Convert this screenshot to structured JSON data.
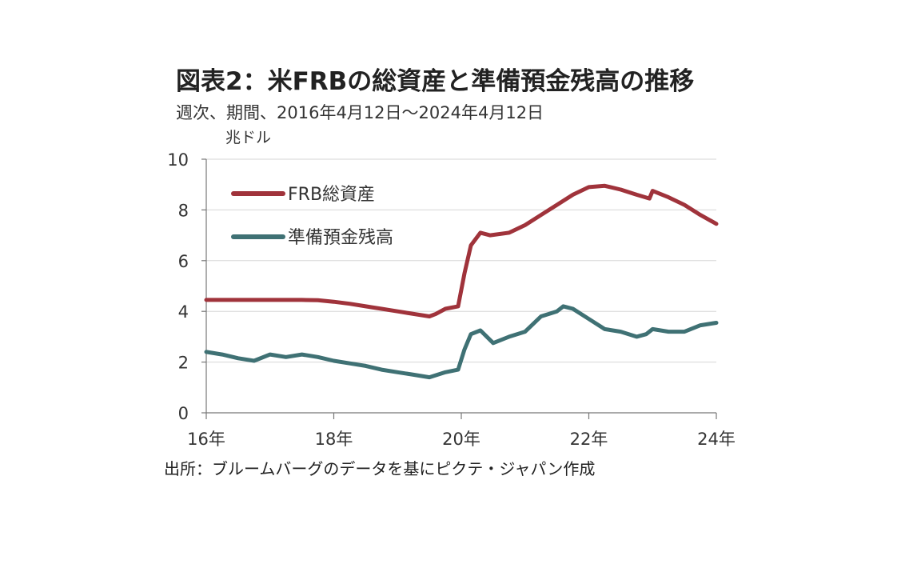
{
  "title": "図表2：米FRBの総資産と準備預金残高の推移",
  "subtitle": "週次、期間、2016年4月12日～2024年4月12日",
  "source": "出所：ブルームバーグのデータを基にピクテ・ジャパン作成",
  "chart_data": {
    "type": "line",
    "title": "図表2：米FRBの総資産と準備預金残高の推移",
    "subtitle": "週次、期間、2016年4月12日～2024年4月12日",
    "ylabel": "兆ドル",
    "xlabel": "",
    "xlim": [
      2016,
      2024
    ],
    "ylim": [
      0,
      10
    ],
    "yticks": [
      "0",
      "2",
      "4",
      "6",
      "8",
      "10"
    ],
    "xticks": [
      {
        "x": 2016,
        "label": "16年"
      },
      {
        "x": 2018,
        "label": "18年"
      },
      {
        "x": 2020,
        "label": "20年"
      },
      {
        "x": 2022,
        "label": "22年"
      },
      {
        "x": 2024,
        "label": "24年"
      }
    ],
    "grid": true,
    "legend_position": "top-left",
    "series": [
      {
        "name": "FRB総資産",
        "color": "#a0333b",
        "points": [
          [
            2016.0,
            4.45
          ],
          [
            2016.5,
            4.45
          ],
          [
            2017.0,
            4.45
          ],
          [
            2017.5,
            4.45
          ],
          [
            2017.75,
            4.44
          ],
          [
            2018.0,
            4.38
          ],
          [
            2018.25,
            4.3
          ],
          [
            2018.5,
            4.2
          ],
          [
            2018.75,
            4.1
          ],
          [
            2019.0,
            4.0
          ],
          [
            2019.25,
            3.9
          ],
          [
            2019.5,
            3.8
          ],
          [
            2019.6,
            3.9
          ],
          [
            2019.75,
            4.1
          ],
          [
            2019.95,
            4.2
          ],
          [
            2020.05,
            5.5
          ],
          [
            2020.15,
            6.6
          ],
          [
            2020.3,
            7.1
          ],
          [
            2020.45,
            7.0
          ],
          [
            2020.75,
            7.1
          ],
          [
            2021.0,
            7.4
          ],
          [
            2021.25,
            7.8
          ],
          [
            2021.5,
            8.2
          ],
          [
            2021.75,
            8.6
          ],
          [
            2022.0,
            8.9
          ],
          [
            2022.25,
            8.95
          ],
          [
            2022.5,
            8.8
          ],
          [
            2022.75,
            8.6
          ],
          [
            2022.95,
            8.45
          ],
          [
            2023.0,
            8.75
          ],
          [
            2023.25,
            8.5
          ],
          [
            2023.5,
            8.2
          ],
          [
            2023.75,
            7.8
          ],
          [
            2024.0,
            7.45
          ]
        ]
      },
      {
        "name": "準備預金残高",
        "color": "#3f7174",
        "points": [
          [
            2016.0,
            2.4
          ],
          [
            2016.25,
            2.3
          ],
          [
            2016.5,
            2.15
          ],
          [
            2016.75,
            2.05
          ],
          [
            2017.0,
            2.3
          ],
          [
            2017.25,
            2.2
          ],
          [
            2017.5,
            2.3
          ],
          [
            2017.75,
            2.2
          ],
          [
            2018.0,
            2.05
          ],
          [
            2018.25,
            1.95
          ],
          [
            2018.5,
            1.85
          ],
          [
            2018.75,
            1.7
          ],
          [
            2019.0,
            1.6
          ],
          [
            2019.25,
            1.5
          ],
          [
            2019.5,
            1.4
          ],
          [
            2019.75,
            1.6
          ],
          [
            2019.95,
            1.7
          ],
          [
            2020.05,
            2.5
          ],
          [
            2020.15,
            3.1
          ],
          [
            2020.3,
            3.25
          ],
          [
            2020.5,
            2.75
          ],
          [
            2020.75,
            3.0
          ],
          [
            2021.0,
            3.2
          ],
          [
            2021.25,
            3.8
          ],
          [
            2021.5,
            4.0
          ],
          [
            2021.6,
            4.2
          ],
          [
            2021.75,
            4.1
          ],
          [
            2022.0,
            3.7
          ],
          [
            2022.25,
            3.3
          ],
          [
            2022.5,
            3.2
          ],
          [
            2022.75,
            3.0
          ],
          [
            2022.9,
            3.1
          ],
          [
            2023.0,
            3.3
          ],
          [
            2023.25,
            3.2
          ],
          [
            2023.5,
            3.2
          ],
          [
            2023.75,
            3.45
          ],
          [
            2024.0,
            3.55
          ]
        ]
      }
    ]
  }
}
